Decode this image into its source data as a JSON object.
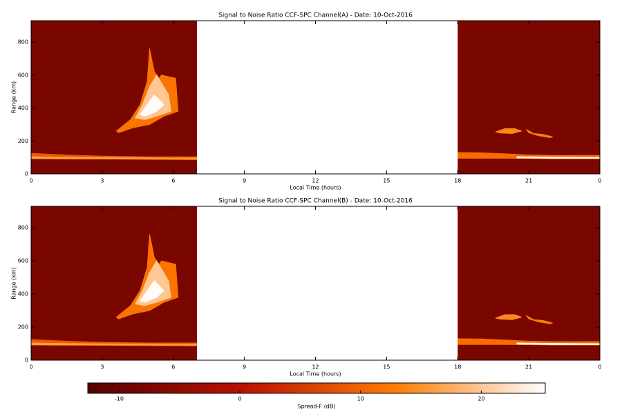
{
  "chart_data": [
    {
      "type": "heatmap",
      "title": "Signal to Noise Ratio CCF-SPC Channel(A) - Date: 10-Oct-2016",
      "xlabel": "Local Time (hours)",
      "ylabel": "Range (km)",
      "xlim": [
        0,
        24
      ],
      "xticks": [
        0,
        3,
        6,
        9,
        12,
        15,
        18,
        21,
        {
          "value": 24,
          "label": "0"
        }
      ],
      "ylim": [
        0,
        930
      ],
      "yticks": [
        0,
        200,
        400,
        600,
        800
      ],
      "background": -8,
      "gaps": [
        [
          7,
          18
        ]
      ],
      "features": [
        {
          "x": [
            0,
            1,
            2,
            3,
            4,
            5,
            6,
            7,
            7,
            5,
            3,
            1,
            0
          ],
          "y": [
            125,
            118,
            112,
            108,
            106,
            104,
            104,
            104,
            86,
            88,
            90,
            90,
            92
          ],
          "value": 9
        },
        {
          "x": [
            0,
            2,
            4,
            6,
            7,
            7,
            4,
            0
          ],
          "y": [
            104,
            100,
            98,
            96,
            96,
            90,
            91,
            94
          ],
          "value": 16
        },
        {
          "x": [
            3.6,
            4.2,
            4.6,
            4.9,
            5.0,
            5.2,
            5.4,
            5.5,
            6.1,
            6.2,
            5.6,
            5.0,
            4.3,
            3.7
          ],
          "y": [
            260,
            330,
            420,
            560,
            760,
            620,
            580,
            600,
            580,
            380,
            350,
            300,
            280,
            250
          ],
          "value": 12
        },
        {
          "x": [
            4.4,
            4.7,
            5.0,
            5.3,
            5.8,
            5.9,
            5.3,
            4.8
          ],
          "y": [
            340,
            420,
            530,
            600,
            480,
            380,
            350,
            330
          ],
          "value": 20
        },
        {
          "x": [
            4.6,
            4.9,
            5.2,
            5.6,
            5.3,
            4.8
          ],
          "y": [
            360,
            420,
            480,
            420,
            380,
            350
          ],
          "value": 25
        },
        {
          "x": [
            18,
            19,
            20,
            21,
            22,
            23,
            24,
            24,
            22,
            20,
            18
          ],
          "y": [
            130,
            128,
            122,
            115,
            112,
            112,
            112,
            92,
            92,
            95,
            95
          ],
          "value": 11
        },
        {
          "x": [
            20.5,
            22,
            24,
            24,
            22,
            20.5
          ],
          "y": [
            104,
            102,
            100,
            94,
            94,
            97
          ],
          "value": 24
        },
        {
          "x": [
            19.6,
            20.0,
            20.4,
            20.7,
            20.3,
            19.8
          ],
          "y": [
            255,
            275,
            275,
            260,
            245,
            248
          ],
          "value": 14
        },
        {
          "x": [
            20.9,
            21.2,
            21.6,
            22.0,
            21.9,
            21.4,
            21.0
          ],
          "y": [
            270,
            245,
            240,
            225,
            220,
            232,
            250
          ],
          "value": 13
        }
      ]
    },
    {
      "type": "heatmap",
      "title": "Signal to Noise Ratio CCF-SPC Channel(B) - Date: 10-Oct-2016",
      "xlabel": "Local Time (hours)",
      "ylabel": "Range (km)",
      "xlim": [
        0,
        24
      ],
      "xticks": [
        0,
        3,
        6,
        9,
        12,
        15,
        18,
        21,
        {
          "value": 24,
          "label": "0"
        }
      ],
      "ylim": [
        0,
        930
      ],
      "yticks": [
        0,
        200,
        400,
        600,
        800
      ],
      "background": -8,
      "gaps": [
        [
          7,
          18
        ]
      ],
      "features": [
        {
          "x": [
            0,
            1,
            2,
            3,
            4,
            5,
            6,
            7,
            7,
            5,
            3,
            1,
            0
          ],
          "y": [
            125,
            118,
            112,
            108,
            106,
            104,
            104,
            104,
            86,
            88,
            90,
            90,
            92
          ],
          "value": 9
        },
        {
          "x": [
            0,
            2,
            4,
            6,
            7,
            7,
            4,
            0
          ],
          "y": [
            104,
            100,
            98,
            96,
            96,
            90,
            91,
            94
          ],
          "value": 16
        },
        {
          "x": [
            3.6,
            4.2,
            4.6,
            4.9,
            5.0,
            5.2,
            5.4,
            5.5,
            6.1,
            6.2,
            5.6,
            5.0,
            4.3,
            3.7
          ],
          "y": [
            260,
            330,
            420,
            560,
            760,
            620,
            580,
            600,
            580,
            380,
            350,
            300,
            280,
            250
          ],
          "value": 12
        },
        {
          "x": [
            4.4,
            4.7,
            5.0,
            5.3,
            5.8,
            5.9,
            5.3,
            4.8
          ],
          "y": [
            340,
            420,
            530,
            600,
            480,
            380,
            350,
            330
          ],
          "value": 20
        },
        {
          "x": [
            4.6,
            4.9,
            5.2,
            5.6,
            5.3,
            4.8
          ],
          "y": [
            360,
            420,
            480,
            420,
            380,
            350
          ],
          "value": 25
        },
        {
          "x": [
            18,
            19,
            20,
            21,
            22,
            23,
            24,
            24,
            22,
            20,
            18
          ],
          "y": [
            130,
            128,
            122,
            115,
            112,
            112,
            112,
            92,
            92,
            95,
            95
          ],
          "value": 11
        },
        {
          "x": [
            20.5,
            22,
            24,
            24,
            22,
            20.5
          ],
          "y": [
            104,
            102,
            100,
            94,
            94,
            97
          ],
          "value": 24
        },
        {
          "x": [
            19.6,
            20.0,
            20.4,
            20.7,
            20.3,
            19.8
          ],
          "y": [
            255,
            275,
            275,
            260,
            245,
            248
          ],
          "value": 14
        },
        {
          "x": [
            20.9,
            21.2,
            21.6,
            22.0,
            21.9,
            21.4,
            21.0
          ],
          "y": [
            270,
            245,
            240,
            225,
            220,
            232,
            250
          ],
          "value": 13
        }
      ]
    },
    {
      "type": "colorbar",
      "label": "Spread-F (dB)",
      "zlim": [
        -12.6,
        25.3
      ],
      "ticks": [
        -10,
        0,
        10,
        20
      ],
      "colormap": [
        "#560000",
        "#b81000",
        "#ff7a00",
        "#ffffff"
      ]
    }
  ]
}
